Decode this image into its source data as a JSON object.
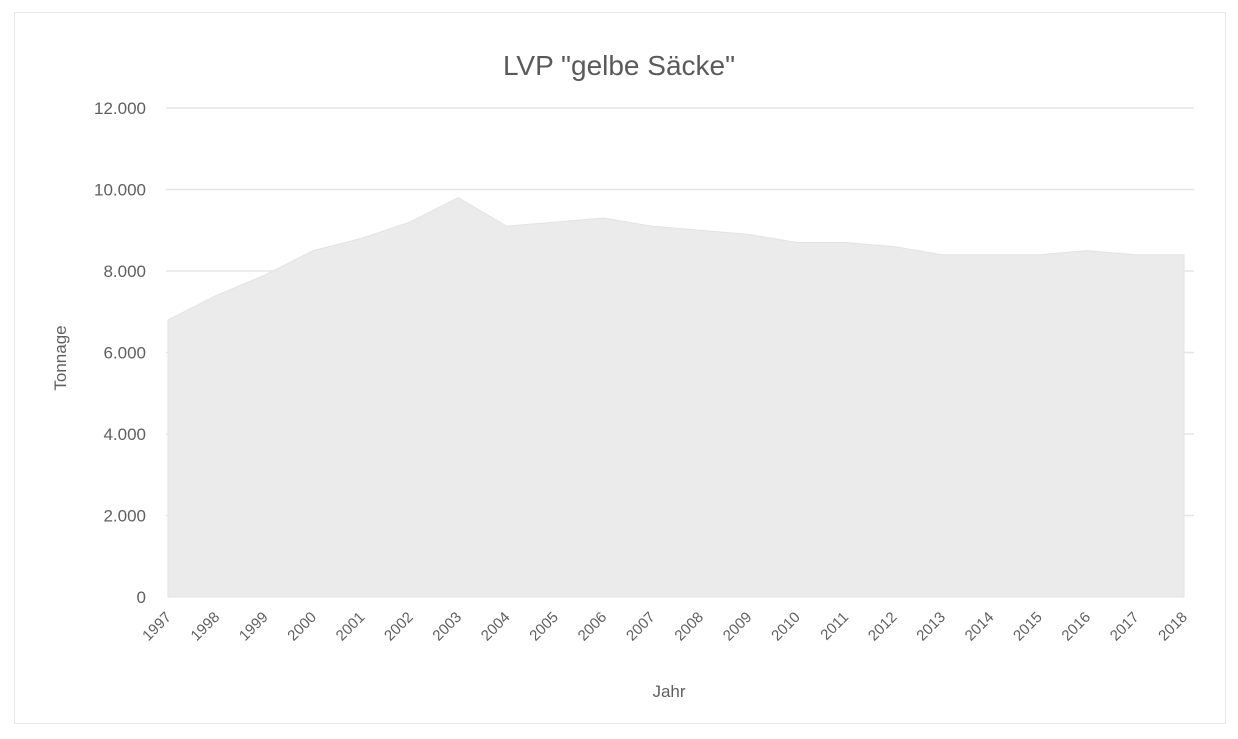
{
  "chart_data": {
    "type": "area",
    "title": "LVP \"gelbe Säcke\"",
    "xlabel": "Jahr",
    "ylabel": "Tonnage",
    "categories": [
      "1997",
      "1998",
      "1999",
      "2000",
      "2001",
      "2002",
      "2003",
      "2004",
      "2005",
      "2006",
      "2007",
      "2008",
      "2009",
      "2010",
      "2011",
      "2012",
      "2013",
      "2014",
      "2015",
      "2016",
      "2017",
      "2018"
    ],
    "values": [
      6800,
      7400,
      7900,
      8500,
      8800,
      9200,
      9800,
      9100,
      9200,
      9300,
      9100,
      9000,
      8900,
      8700,
      8700,
      8600,
      8400,
      8400,
      8400,
      8500,
      8400,
      8400
    ],
    "ylim": [
      0,
      12000
    ],
    "yticks": [
      0,
      2000,
      4000,
      6000,
      8000,
      10000,
      12000
    ],
    "ytick_labels": [
      "0",
      "2.000",
      "4.000",
      "6.000",
      "8.000",
      "10.000",
      "12.000"
    ],
    "grid": true,
    "legend": "none",
    "colors": {
      "area": "#ebebeb",
      "grid": "#e6e6e6",
      "text": "#5f5f5f"
    }
  }
}
